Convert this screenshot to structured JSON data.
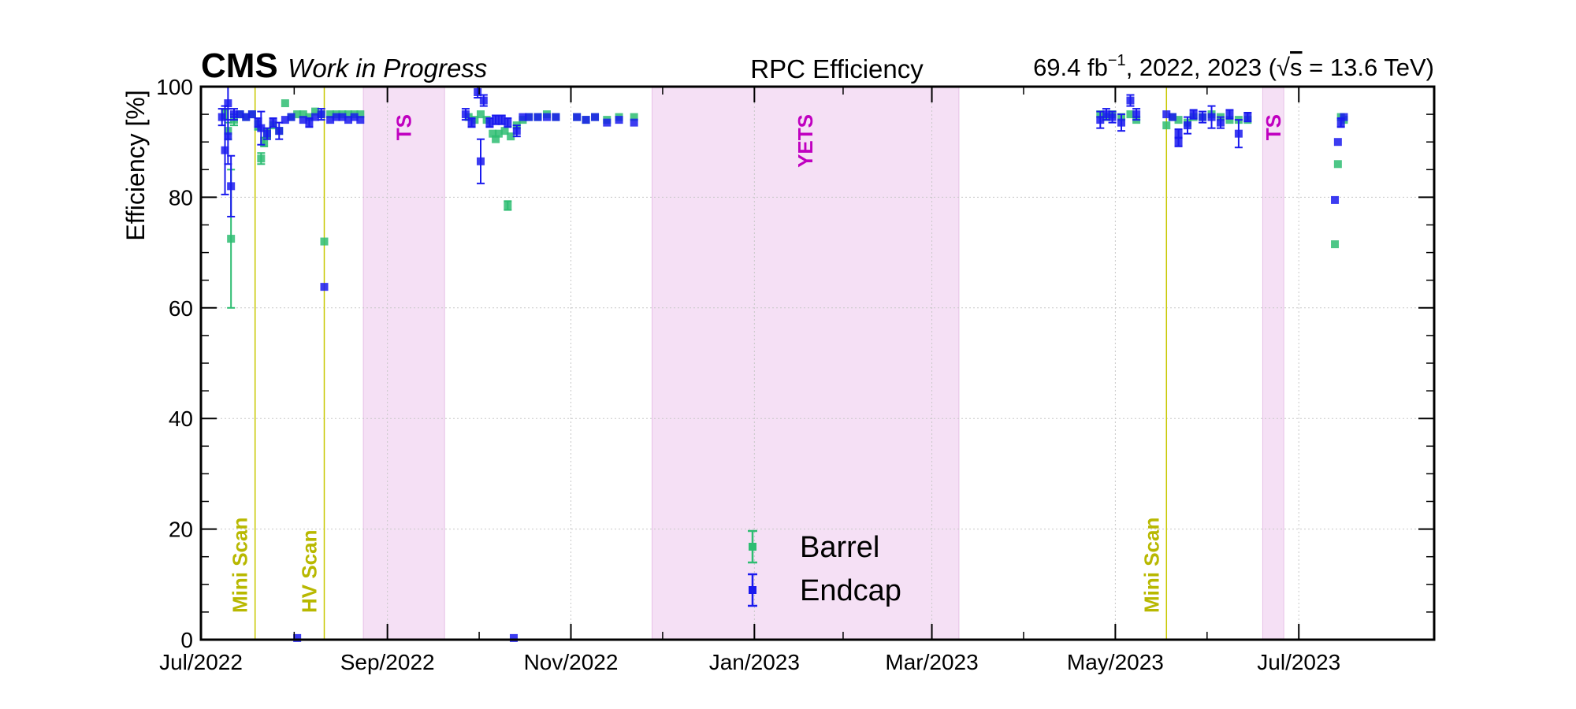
{
  "header": {
    "experiment": "CMS",
    "status": "Work in Progress",
    "title": "RPC Efficiency",
    "lumi": "69.4 fb",
    "lumi_exp": "−1",
    "lumi_years": ", 2022, 2023 (",
    "sqrt": "√",
    "s": "s",
    "energy": " = 13.6 TeV)"
  },
  "chart_data": {
    "type": "scatter",
    "title": "RPC Efficiency",
    "xlabel": "",
    "ylabel": "Efficiency [%]",
    "xlim": [
      "2022-07-01",
      "2023-08-15"
    ],
    "ylim": [
      0,
      100
    ],
    "x_ticks": [
      {
        "date": "2022-07-01",
        "label": "Jul/2022"
      },
      {
        "date": "2022-09-01",
        "label": "Sep/2022"
      },
      {
        "date": "2022-11-01",
        "label": "Nov/2022"
      },
      {
        "date": "2023-01-01",
        "label": "Jan/2023"
      },
      {
        "date": "2023-03-01",
        "label": "Mar/2023"
      },
      {
        "date": "2023-05-01",
        "label": "May/2023"
      },
      {
        "date": "2023-07-01",
        "label": "Jul/2023"
      }
    ],
    "y_ticks": [
      0,
      20,
      40,
      60,
      80,
      100
    ],
    "grid": true,
    "legend_position": "bottom-center",
    "shaded_bands": [
      {
        "label": "TS",
        "start": "2022-08-24",
        "end": "2022-09-20"
      },
      {
        "label": "YETS",
        "start": "2022-11-28",
        "end": "2023-03-10"
      },
      {
        "label": "TS",
        "start": "2023-06-19",
        "end": "2023-06-26"
      }
    ],
    "vertical_lines": [
      {
        "label": "Mini Scan",
        "date": "2022-07-19"
      },
      {
        "label": "HV Scan",
        "date": "2022-08-11"
      },
      {
        "label": "Mini Scan",
        "date": "2023-05-18"
      }
    ],
    "series": [
      {
        "name": "Barrel",
        "color": "#2ebd72",
        "points": [
          {
            "x": "2022-07-09",
            "y": 95.0,
            "err": 0.8
          },
          {
            "x": "2022-07-10",
            "y": 92.0,
            "err": 1.5
          },
          {
            "x": "2022-07-11",
            "y": 72.5,
            "err": 12.5
          },
          {
            "x": "2022-07-12",
            "y": 94.0,
            "err": 1.0
          },
          {
            "x": "2022-07-14",
            "y": 95.0,
            "err": 0.5
          },
          {
            "x": "2022-07-16",
            "y": 94.5,
            "err": 0.5
          },
          {
            "x": "2022-07-18",
            "y": 95.0,
            "err": 0.5
          },
          {
            "x": "2022-07-20",
            "y": 93.0,
            "err": 0.8
          },
          {
            "x": "2022-07-21",
            "y": 87.0,
            "err": 1.0
          },
          {
            "x": "2022-07-22",
            "y": 90.0,
            "err": 0.8
          },
          {
            "x": "2022-07-23",
            "y": 91.5,
            "err": 0.8
          },
          {
            "x": "2022-07-25",
            "y": 93.0,
            "err": 0.5
          },
          {
            "x": "2022-07-27",
            "y": 92.0,
            "err": 0.5
          },
          {
            "x": "2022-07-29",
            "y": 97.0,
            "err": 0.5
          },
          {
            "x": "2022-07-31",
            "y": 94.5,
            "err": 0.5
          },
          {
            "x": "2022-08-02",
            "y": 95.0,
            "err": 0.5
          },
          {
            "x": "2022-08-04",
            "y": 95.0,
            "err": 0.5
          },
          {
            "x": "2022-08-06",
            "y": 94.5,
            "err": 0.5
          },
          {
            "x": "2022-08-08",
            "y": 95.5,
            "err": 0.5
          },
          {
            "x": "2022-08-10",
            "y": 95.0,
            "err": 0.5
          },
          {
            "x": "2022-08-11",
            "y": 72.0,
            "err": 0.5
          },
          {
            "x": "2022-08-13",
            "y": 95.0,
            "err": 0.5
          },
          {
            "x": "2022-08-15",
            "y": 95.0,
            "err": 0.5
          },
          {
            "x": "2022-08-17",
            "y": 95.0,
            "err": 0.5
          },
          {
            "x": "2022-08-19",
            "y": 95.0,
            "err": 0.5
          },
          {
            "x": "2022-08-21",
            "y": 95.0,
            "err": 0.5
          },
          {
            "x": "2022-08-23",
            "y": 95.0,
            "err": 0.5
          },
          {
            "x": "2022-09-28",
            "y": 94.5,
            "err": 0.5
          },
          {
            "x": "2022-09-30",
            "y": 94.0,
            "err": 0.5
          },
          {
            "x": "2022-10-02",
            "y": 95.0,
            "err": 0.5
          },
          {
            "x": "2022-10-04",
            "y": 94.0,
            "err": 0.5
          },
          {
            "x": "2022-10-06",
            "y": 91.5,
            "err": 0.5
          },
          {
            "x": "2022-10-07",
            "y": 90.5,
            "err": 0.5
          },
          {
            "x": "2022-10-08",
            "y": 91.5,
            "err": 0.5
          },
          {
            "x": "2022-10-10",
            "y": 92.0,
            "err": 0.5
          },
          {
            "x": "2022-10-11",
            "y": 78.5,
            "err": 0.8
          },
          {
            "x": "2022-10-12",
            "y": 91.0,
            "err": 0.5
          },
          {
            "x": "2022-10-14",
            "y": 93.0,
            "err": 0.5
          },
          {
            "x": "2022-10-16",
            "y": 94.0,
            "err": 0.5
          },
          {
            "x": "2022-10-18",
            "y": 94.5,
            "err": 0.5
          },
          {
            "x": "2022-10-21",
            "y": 94.5,
            "err": 0.5
          },
          {
            "x": "2022-10-24",
            "y": 95.0,
            "err": 0.5
          },
          {
            "x": "2022-10-27",
            "y": 94.5,
            "err": 0.5
          },
          {
            "x": "2022-11-03",
            "y": 94.5,
            "err": 0.5
          },
          {
            "x": "2022-11-06",
            "y": 94.0,
            "err": 0.5
          },
          {
            "x": "2022-11-09",
            "y": 94.5,
            "err": 0.5
          },
          {
            "x": "2022-11-13",
            "y": 94.0,
            "err": 0.5
          },
          {
            "x": "2022-11-17",
            "y": 94.5,
            "err": 0.5
          },
          {
            "x": "2022-11-22",
            "y": 94.5,
            "err": 0.5
          },
          {
            "x": "2023-04-26",
            "y": 95.0,
            "err": 0.5
          },
          {
            "x": "2023-04-28",
            "y": 94.5,
            "err": 0.5
          },
          {
            "x": "2023-04-30",
            "y": 95.0,
            "err": 0.5
          },
          {
            "x": "2023-05-03",
            "y": 94.5,
            "err": 0.5
          },
          {
            "x": "2023-05-06",
            "y": 95.0,
            "err": 0.5
          },
          {
            "x": "2023-05-08",
            "y": 94.0,
            "err": 0.5
          },
          {
            "x": "2023-05-18",
            "y": 93.0,
            "err": 0.5
          },
          {
            "x": "2023-05-20",
            "y": 94.5,
            "err": 0.5
          },
          {
            "x": "2023-05-22",
            "y": 94.0,
            "err": 0.5
          },
          {
            "x": "2023-05-25",
            "y": 93.5,
            "err": 0.5
          },
          {
            "x": "2023-05-27",
            "y": 94.5,
            "err": 0.5
          },
          {
            "x": "2023-05-30",
            "y": 94.5,
            "err": 0.5
          },
          {
            "x": "2023-06-02",
            "y": 95.0,
            "err": 0.5
          },
          {
            "x": "2023-06-05",
            "y": 94.5,
            "err": 0.5
          },
          {
            "x": "2023-06-08",
            "y": 94.0,
            "err": 0.5
          },
          {
            "x": "2023-06-11",
            "y": 94.0,
            "err": 0.5
          },
          {
            "x": "2023-06-14",
            "y": 94.0,
            "err": 0.5
          },
          {
            "x": "2023-07-13",
            "y": 71.5,
            "err": 0.5
          },
          {
            "x": "2023-07-14",
            "y": 86.0,
            "err": 0.5
          },
          {
            "x": "2023-07-15",
            "y": 94.5,
            "err": 0.5
          },
          {
            "x": "2023-07-16",
            "y": 94.0,
            "err": 0.5
          }
        ]
      },
      {
        "name": "Endcap",
        "color": "#1a1aee",
        "points": [
          {
            "x": "2022-07-08",
            "y": 94.5,
            "err": 1.5
          },
          {
            "x": "2022-07-09",
            "y": 88.5,
            "err": 8.0
          },
          {
            "x": "2022-07-10",
            "y": 97.0,
            "err": 3.0
          },
          {
            "x": "2022-07-10",
            "y": 91.0,
            "err": 5.0
          },
          {
            "x": "2022-07-11",
            "y": 82.0,
            "err": 5.5
          },
          {
            "x": "2022-07-12",
            "y": 95.0,
            "err": 1.0
          },
          {
            "x": "2022-07-14",
            "y": 95.0,
            "err": 0.5
          },
          {
            "x": "2022-07-16",
            "y": 94.5,
            "err": 0.5
          },
          {
            "x": "2022-07-18",
            "y": 95.0,
            "err": 0.5
          },
          {
            "x": "2022-07-20",
            "y": 93.5,
            "err": 0.8
          },
          {
            "x": "2022-07-21",
            "y": 92.5,
            "err": 3.0
          },
          {
            "x": "2022-07-23",
            "y": 91.5,
            "err": 1.0
          },
          {
            "x": "2022-07-25",
            "y": 93.5,
            "err": 0.8
          },
          {
            "x": "2022-07-27",
            "y": 92.0,
            "err": 1.5
          },
          {
            "x": "2022-07-29",
            "y": 94.0,
            "err": 0.5
          },
          {
            "x": "2022-07-31",
            "y": 94.5,
            "err": 0.5
          },
          {
            "x": "2022-08-02",
            "y": 0.3,
            "err": 0.3
          },
          {
            "x": "2022-08-04",
            "y": 94.0,
            "err": 0.5
          },
          {
            "x": "2022-08-06",
            "y": 93.5,
            "err": 0.8
          },
          {
            "x": "2022-08-08",
            "y": 94.5,
            "err": 0.5
          },
          {
            "x": "2022-08-10",
            "y": 95.0,
            "err": 1.0
          },
          {
            "x": "2022-08-11",
            "y": 63.8,
            "err": 0.6
          },
          {
            "x": "2022-08-13",
            "y": 94.0,
            "err": 0.5
          },
          {
            "x": "2022-08-15",
            "y": 94.5,
            "err": 0.5
          },
          {
            "x": "2022-08-17",
            "y": 94.5,
            "err": 0.5
          },
          {
            "x": "2022-08-19",
            "y": 94.0,
            "err": 0.5
          },
          {
            "x": "2022-08-21",
            "y": 94.5,
            "err": 0.5
          },
          {
            "x": "2022-08-23",
            "y": 94.0,
            "err": 0.5
          },
          {
            "x": "2022-09-27",
            "y": 95.0,
            "err": 1.0
          },
          {
            "x": "2022-09-29",
            "y": 93.5,
            "err": 0.8
          },
          {
            "x": "2022-10-01",
            "y": 99.0,
            "err": 1.0
          },
          {
            "x": "2022-10-02",
            "y": 86.5,
            "err": 4.0
          },
          {
            "x": "2022-10-03",
            "y": 97.5,
            "err": 1.0
          },
          {
            "x": "2022-10-05",
            "y": 93.5,
            "err": 0.8
          },
          {
            "x": "2022-10-07",
            "y": 94.0,
            "err": 0.8
          },
          {
            "x": "2022-10-09",
            "y": 94.0,
            "err": 0.8
          },
          {
            "x": "2022-10-11",
            "y": 93.5,
            "err": 0.8
          },
          {
            "x": "2022-10-13",
            "y": 0.3,
            "err": 0.3
          },
          {
            "x": "2022-10-14",
            "y": 92.0,
            "err": 1.0
          },
          {
            "x": "2022-10-16",
            "y": 94.5,
            "err": 0.5
          },
          {
            "x": "2022-10-18",
            "y": 94.5,
            "err": 0.5
          },
          {
            "x": "2022-10-21",
            "y": 94.5,
            "err": 0.5
          },
          {
            "x": "2022-10-24",
            "y": 94.5,
            "err": 0.5
          },
          {
            "x": "2022-10-27",
            "y": 94.5,
            "err": 0.5
          },
          {
            "x": "2022-11-03",
            "y": 94.5,
            "err": 0.5
          },
          {
            "x": "2022-11-06",
            "y": 94.0,
            "err": 0.5
          },
          {
            "x": "2022-11-09",
            "y": 94.5,
            "err": 0.5
          },
          {
            "x": "2022-11-13",
            "y": 93.5,
            "err": 0.5
          },
          {
            "x": "2022-11-17",
            "y": 94.0,
            "err": 0.5
          },
          {
            "x": "2022-11-22",
            "y": 93.5,
            "err": 0.5
          },
          {
            "x": "2023-04-26",
            "y": 94.0,
            "err": 1.5
          },
          {
            "x": "2023-04-28",
            "y": 95.0,
            "err": 1.0
          },
          {
            "x": "2023-04-30",
            "y": 94.5,
            "err": 1.0
          },
          {
            "x": "2023-05-03",
            "y": 93.5,
            "err": 1.5
          },
          {
            "x": "2023-05-06",
            "y": 97.5,
            "err": 1.0
          },
          {
            "x": "2023-05-08",
            "y": 95.0,
            "err": 1.0
          },
          {
            "x": "2023-05-18",
            "y": 95.0,
            "err": 0.5
          },
          {
            "x": "2023-05-20",
            "y": 94.5,
            "err": 0.5
          },
          {
            "x": "2023-05-22",
            "y": 90.0,
            "err": 0.8
          },
          {
            "x": "2023-05-22",
            "y": 91.5,
            "err": 0.8
          },
          {
            "x": "2023-05-25",
            "y": 93.0,
            "err": 1.5
          },
          {
            "x": "2023-05-27",
            "y": 95.0,
            "err": 0.8
          },
          {
            "x": "2023-05-30",
            "y": 94.5,
            "err": 1.0
          },
          {
            "x": "2023-06-02",
            "y": 94.5,
            "err": 2.0
          },
          {
            "x": "2023-06-05",
            "y": 93.5,
            "err": 1.0
          },
          {
            "x": "2023-06-08",
            "y": 95.0,
            "err": 0.8
          },
          {
            "x": "2023-06-11",
            "y": 91.5,
            "err": 2.5
          },
          {
            "x": "2023-06-14",
            "y": 94.5,
            "err": 0.8
          },
          {
            "x": "2023-07-13",
            "y": 79.5,
            "err": 0.5
          },
          {
            "x": "2023-07-14",
            "y": 90.0,
            "err": 0.5
          },
          {
            "x": "2023-07-15",
            "y": 93.5,
            "err": 0.8
          },
          {
            "x": "2023-07-16",
            "y": 94.5,
            "err": 0.5
          }
        ]
      }
    ]
  }
}
